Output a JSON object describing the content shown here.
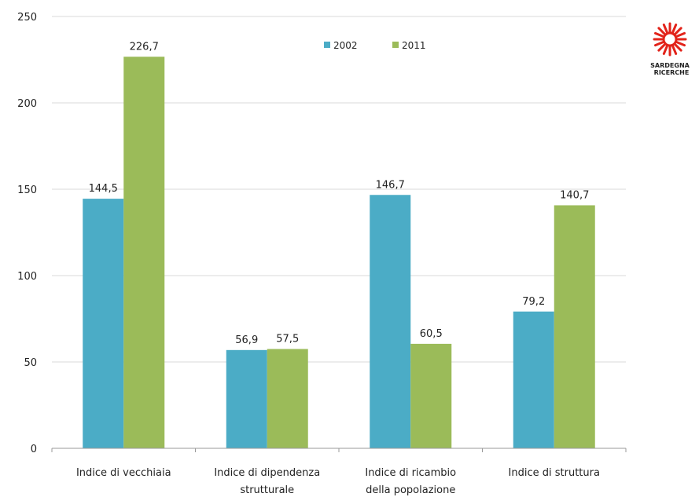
{
  "chart_data": {
    "type": "bar",
    "categories": [
      [
        "Indice di vecchiaia"
      ],
      [
        "Indice di dipendenza",
        "strutturale"
      ],
      [
        "Indice di ricambio",
        "della popolazione"
      ],
      [
        "Indice di struttura"
      ]
    ],
    "series": [
      {
        "name": "2002",
        "color": "#4bacc6",
        "values": [
          144.5,
          56.9,
          146.7,
          79.2
        ],
        "labels": [
          "144,5",
          "56,9",
          "146,7",
          "79,2"
        ]
      },
      {
        "name": "2011",
        "color": "#9bbb59",
        "values": [
          226.7,
          57.5,
          60.5,
          140.7
        ],
        "labels": [
          "226,7",
          "57,5",
          "60,5",
          "140,7"
        ]
      }
    ],
    "ylim": [
      0,
      250
    ],
    "yticks": [
      0,
      50,
      100,
      150,
      200,
      250
    ],
    "grid": true,
    "legend_position": "top-center"
  },
  "logo": {
    "line1": "SARDEGNA",
    "line2": "RICERCHE"
  }
}
